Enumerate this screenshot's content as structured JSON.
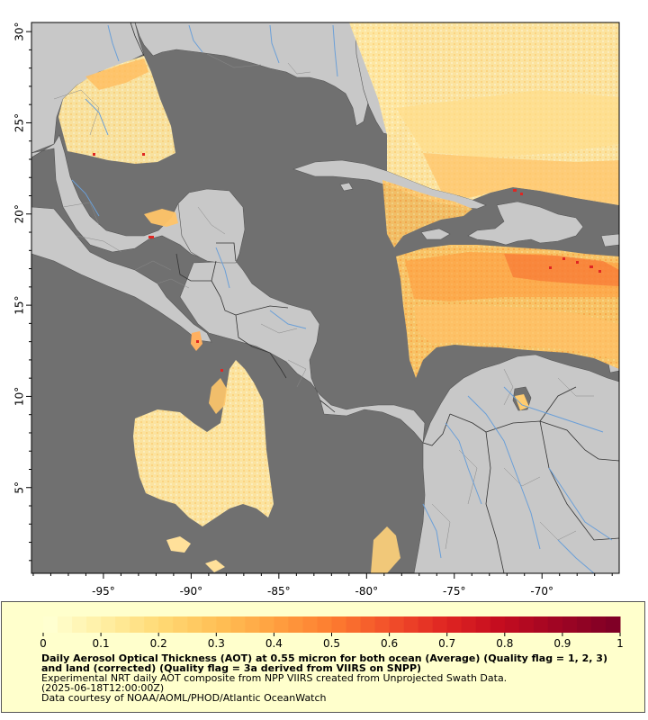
{
  "map": {
    "x_ticks": [
      {
        "lon": -95,
        "label": "-95°"
      },
      {
        "lon": -90,
        "label": "-90°"
      },
      {
        "lon": -85,
        "label": "-85°"
      },
      {
        "lon": -80,
        "label": "-80°"
      },
      {
        "lon": -75,
        "label": "-75°"
      },
      {
        "lon": -70,
        "label": "-70°"
      }
    ],
    "y_ticks": [
      {
        "lat": 30,
        "label": "30°"
      },
      {
        "lat": 25,
        "label": "25°"
      },
      {
        "lat": 20,
        "label": "20°"
      },
      {
        "lat": 15,
        "label": "15°"
      },
      {
        "lat": 10,
        "label": "10°"
      },
      {
        "lat": 5,
        "label": "5°"
      }
    ],
    "lon_range": [
      -99.1,
      -65.6
    ],
    "lat_range": [
      0.3,
      30.5
    ],
    "colors": {
      "ocean_nodata": "#707070",
      "land": "#c8c8c8",
      "rivers": "#6a9fd8",
      "borders": "#333333"
    }
  },
  "legend": {
    "colorbar_ticks": [
      "0",
      "0.1",
      "0.2",
      "0.3",
      "0.4",
      "0.5",
      "0.6",
      "0.7",
      "0.8",
      "0.9",
      "1"
    ],
    "colorbar_range": [
      0,
      1
    ],
    "colorbar_colors": [
      "#ffffd0",
      "#ffeea0",
      "#ffd873",
      "#ffbf55",
      "#ffa040",
      "#fd7d30",
      "#f2502a",
      "#e02622",
      "#c40c1f",
      "#a00523",
      "#800026"
    ],
    "title": "Daily Aerosol Optical Thickness (AOT) at 0.55 micron for both ocean (Average) (Quality flag = 1, 2, 3) and land (corrected) (Quality flag = 3a derived from VIIRS on SNPP)",
    "line1": "Experimental NRT daily AOT composite from NPP VIIRS created from Unprojected Swath Data.",
    "line2": "(2025-06-18T12:00:00Z)",
    "line3": "Data courtesy of NOAA/AOML/PHOD/Atlantic OceanWatch"
  }
}
